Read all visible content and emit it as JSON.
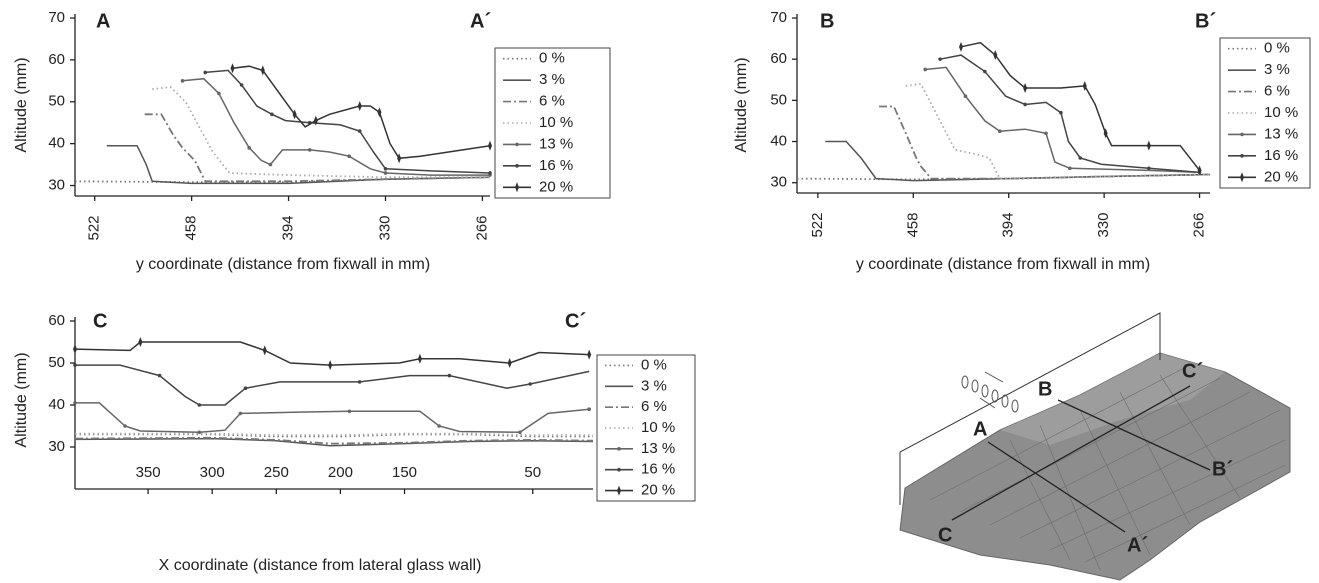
{
  "chart_data": [
    {
      "type": "line",
      "corner_labels": [
        "A",
        "A´"
      ],
      "y_label": "Altitude (mm)",
      "x_label": "y coordinate (distance from fixwall in mm)",
      "xlim": [
        535,
        261
      ],
      "xticks": [
        522,
        458,
        394,
        330,
        266
      ],
      "ylim": [
        27.5,
        70
      ],
      "yticks": [
        30,
        40,
        50,
        60,
        70
      ],
      "grid": false,
      "legend": "right",
      "series": [
        {
          "name": "0 %",
          "color": "#777",
          "dash": "dot",
          "marker": "none",
          "x": [
            535,
            458,
            394,
            330,
            261
          ],
          "values": [
            31,
            30.8,
            30.8,
            31.5,
            32
          ]
        },
        {
          "name": "3 %",
          "color": "#555",
          "dash": "solid",
          "marker": "none",
          "x": [
            514,
            494,
            488,
            484,
            458,
            394,
            330,
            261
          ],
          "values": [
            39.5,
            39.5,
            35,
            31,
            30.5,
            30.5,
            31.5,
            32
          ]
        },
        {
          "name": "6 %",
          "color": "#777",
          "dash": "dashdot",
          "marker": "none",
          "x": [
            489,
            478,
            470,
            464,
            456,
            449,
            394,
            330,
            261
          ],
          "values": [
            47,
            47,
            42,
            39,
            36,
            31,
            31,
            31.5,
            32
          ]
        },
        {
          "name": "10 %",
          "color": "#aaa",
          "dash": "dot",
          "marker": "none",
          "x": [
            484,
            472,
            462,
            453,
            444,
            433,
            394,
            330,
            261
          ],
          "values": [
            53,
            53.5,
            50,
            44,
            38,
            33,
            32.5,
            32,
            32
          ]
        },
        {
          "name": "13 %",
          "color": "#666",
          "dash": "solid",
          "marker": "dot",
          "x": [
            464,
            450,
            440,
            430,
            420,
            412,
            406,
            398,
            380,
            367,
            354,
            340,
            330,
            300,
            261
          ],
          "values": [
            55,
            55.5,
            52,
            45,
            39,
            36,
            35,
            38.5,
            38.5,
            38,
            37,
            34,
            33,
            32.5,
            32.5
          ]
        },
        {
          "name": "16 %",
          "color": "#444",
          "dash": "solid",
          "marker": "dot",
          "x": [
            449,
            434,
            425,
            415,
            405,
            396,
            380,
            360,
            347,
            338,
            330,
            300,
            261
          ],
          "values": [
            57,
            57.5,
            54,
            49,
            47,
            45.5,
            45,
            44.5,
            43,
            38,
            34,
            33.5,
            33
          ]
        },
        {
          "name": "20 %",
          "color": "#333",
          "dash": "solid",
          "marker": "tick",
          "x": [
            431,
            420,
            411,
            400,
            390,
            383,
            376,
            367,
            347,
            340,
            334,
            327,
            321,
            307,
            261
          ],
          "values": [
            58,
            58.5,
            57.5,
            52,
            47,
            44,
            45.5,
            47,
            49,
            49,
            47.5,
            40,
            36.5,
            37,
            39.5
          ]
        }
      ]
    },
    {
      "type": "line",
      "corner_labels": [
        "B",
        "B´"
      ],
      "y_label": "Altitude (mm)",
      "x_label": "y coordinate (distance from fixwall in mm)",
      "xlim": [
        536,
        259
      ],
      "xticks": [
        522,
        458,
        394,
        330,
        266
      ],
      "ylim": [
        27.5,
        70
      ],
      "yticks": [
        30,
        40,
        50,
        60,
        70
      ],
      "grid": false,
      "legend": "right",
      "series": [
        {
          "name": "0 %",
          "color": "#777",
          "dash": "dot",
          "marker": "none",
          "x": [
            536,
            458,
            394,
            330,
            259
          ],
          "values": [
            31,
            30.8,
            31,
            31.5,
            32
          ]
        },
        {
          "name": "3 %",
          "color": "#555",
          "dash": "solid",
          "marker": "none",
          "x": [
            517,
            503,
            493,
            483,
            458,
            394,
            330,
            259
          ],
          "values": [
            40,
            40,
            36,
            31,
            30.5,
            31,
            31.5,
            32
          ]
        },
        {
          "name": "6 %",
          "color": "#777",
          "dash": "dashdot",
          "marker": "none",
          "x": [
            481,
            471,
            463,
            456,
            453,
            446,
            394,
            330,
            259
          ],
          "values": [
            48.5,
            48.5,
            42,
            36,
            34,
            31,
            31,
            31.5,
            32
          ]
        },
        {
          "name": "10 %",
          "color": "#aaa",
          "dash": "dot",
          "marker": "none",
          "x": [
            463,
            453,
            440,
            430,
            417,
            407,
            400,
            330,
            259
          ],
          "values": [
            53.5,
            54,
            45,
            38,
            37,
            36,
            31,
            31.5,
            32
          ]
        },
        {
          "name": "13 %",
          "color": "#666",
          "dash": "solid",
          "marker": "dot",
          "x": [
            450,
            436,
            423,
            410,
            400,
            383,
            369,
            363,
            353,
            300,
            266
          ],
          "values": [
            57.5,
            58,
            51,
            45,
            42.5,
            43,
            42,
            35,
            33.5,
            33,
            32.5
          ]
        },
        {
          "name": "16 %",
          "color": "#444",
          "dash": "solid",
          "marker": "dot",
          "x": [
            440,
            426,
            410,
            396,
            383,
            369,
            359,
            354,
            346,
            332,
            300,
            266
          ],
          "values": [
            60,
            61,
            57,
            51,
            49,
            49.5,
            47,
            40,
            36,
            34.5,
            33.5,
            32.5
          ]
        },
        {
          "name": "20 %",
          "color": "#333",
          "dash": "solid",
          "marker": "tick",
          "x": [
            426,
            413,
            403,
            393,
            383,
            359,
            343,
            336,
            329,
            325,
            300,
            279,
            266
          ],
          "values": [
            63,
            64,
            61,
            56,
            53,
            53,
            53.5,
            49,
            42,
            39,
            39,
            39,
            33
          ]
        }
      ]
    },
    {
      "type": "line",
      "corner_labels": [
        "C",
        "C´"
      ],
      "y_label": "Altitude (mm)",
      "x_label": "X coordinate (distance from lateral glass wall)",
      "xlim": [
        407,
        3
      ],
      "xticks": [
        350,
        300,
        250,
        200,
        150,
        50
      ],
      "ylim": [
        20,
        60
      ],
      "yticks": [
        30,
        40,
        50,
        60
      ],
      "grid": false,
      "legend": "right",
      "series": [
        {
          "name": "0 %",
          "color": "#777",
          "dash": "dot",
          "marker": "none",
          "x": [
            407,
            350,
            300,
            250,
            200,
            150,
            100,
            50,
            3
          ],
          "values": [
            33,
            33,
            33,
            32.5,
            32.5,
            33,
            33,
            32.5,
            32.5
          ]
        },
        {
          "name": "3 %",
          "color": "#555",
          "dash": "solid",
          "marker": "none",
          "x": [
            407,
            300,
            250,
            208,
            150,
            100,
            50,
            3
          ],
          "values": [
            31.8,
            32,
            31.5,
            30.3,
            30.8,
            31.3,
            31.5,
            31.3
          ]
        },
        {
          "name": "6 %",
          "color": "#777",
          "dash": "dashdot",
          "marker": "none",
          "x": [
            407,
            300,
            250,
            208,
            150,
            100,
            50,
            3
          ],
          "values": [
            32,
            32.2,
            31.7,
            30.8,
            31,
            31.5,
            31.7,
            31.5
          ]
        },
        {
          "name": "10 %",
          "color": "#aaa",
          "dash": "dot",
          "marker": "none",
          "x": [
            407,
            350,
            300,
            250,
            200,
            150,
            100,
            50,
            3
          ],
          "values": [
            33.2,
            33.2,
            33.2,
            32.8,
            32.8,
            33.2,
            33.2,
            32.8,
            32.8
          ]
        },
        {
          "name": "13 %",
          "color": "#666",
          "dash": "solid",
          "marker": "dot",
          "x": [
            407,
            388,
            368,
            356,
            310,
            290,
            278,
            232,
            193,
            138,
            123,
            107,
            60,
            38,
            6
          ],
          "values": [
            40.5,
            40.5,
            35,
            33.8,
            33.5,
            34,
            38,
            38.3,
            38.5,
            38.5,
            35,
            33.7,
            33.5,
            38,
            39
          ]
        },
        {
          "name": "16 %",
          "color": "#444",
          "dash": "solid",
          "marker": "dot",
          "x": [
            407,
            372,
            341,
            321,
            310,
            290,
            274,
            247,
            185,
            146,
            115,
            70,
            52,
            6
          ],
          "values": [
            49.5,
            49.5,
            47,
            42,
            40,
            40,
            44,
            45.5,
            45.5,
            47,
            47,
            44,
            45,
            48
          ]
        },
        {
          "name": "20 %",
          "color": "#333",
          "dash": "solid",
          "marker": "tick",
          "x": [
            407,
            364,
            356,
            278,
            259,
            239,
            208,
            154,
            138,
            107,
            68,
            45,
            6
          ],
          "values": [
            53.3,
            53,
            55,
            55,
            53,
            50,
            49.5,
            50,
            51,
            51,
            50,
            52.5,
            52
          ]
        }
      ]
    }
  ],
  "diagram": {
    "labels": [
      "A",
      "A´",
      "B",
      "B´",
      "C",
      "C´"
    ]
  }
}
